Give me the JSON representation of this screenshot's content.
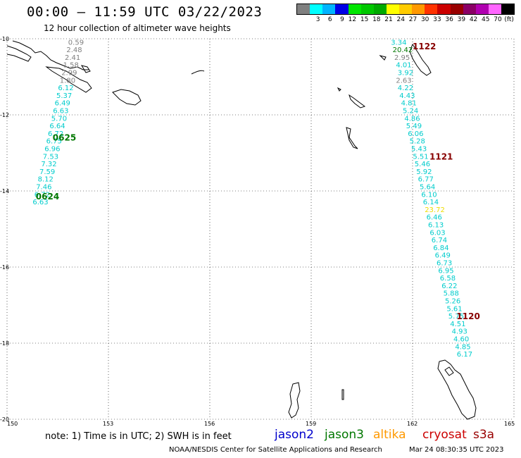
{
  "header": {
    "title": "00:00 — 11:59 UTC 03/22/2023",
    "subtitle": "12 hour collection of altimeter wave heights"
  },
  "color_scale": {
    "unit_label": "(ft)",
    "bins": [
      {
        "label": "",
        "color": "#808080"
      },
      {
        "label": "3",
        "color": "#00ffff"
      },
      {
        "label": "6",
        "color": "#00b4ff"
      },
      {
        "label": "9",
        "color": "#0000e6"
      },
      {
        "label": "12",
        "color": "#00e600"
      },
      {
        "label": "15",
        "color": "#00c800"
      },
      {
        "label": "18",
        "color": "#00aa00"
      },
      {
        "label": "21",
        "color": "#ffff00"
      },
      {
        "label": "24",
        "color": "#ffcc00"
      },
      {
        "label": "27",
        "color": "#ff9900"
      },
      {
        "label": "30",
        "color": "#ff3300"
      },
      {
        "label": "33",
        "color": "#cc0000"
      },
      {
        "label": "36",
        "color": "#990000"
      },
      {
        "label": "39",
        "color": "#8b0066"
      },
      {
        "label": "42",
        "color": "#b000b0"
      },
      {
        "label": "45",
        "color": "#ff66ff"
      },
      {
        "label": "70",
        "color": "#000000"
      }
    ]
  },
  "map": {
    "lon_range": [
      150,
      165
    ],
    "lat_range": [
      -20,
      -10
    ],
    "lon_ticks": [
      "150",
      "153",
      "156",
      "159",
      "162",
      "165"
    ],
    "lat_ticks": [
      "-10",
      "-12",
      "-14",
      "-16",
      "-18",
      "-20"
    ],
    "track_labels": [
      {
        "text": "0625",
        "lon": 151.35,
        "lat": -12.6,
        "color": "#007700"
      },
      {
        "text": "0624",
        "lon": 150.85,
        "lat": -14.15,
        "color": "#007700"
      },
      {
        "text": "1122",
        "lon": 162.0,
        "lat": -10.2,
        "color": "#880000"
      },
      {
        "text": "1121",
        "lon": 162.5,
        "lat": -13.1,
        "color": "#880000"
      },
      {
        "text": "1120",
        "lon": 163.3,
        "lat": -17.3,
        "color": "#880000"
      }
    ],
    "tracks": [
      {
        "name": "west",
        "points": [
          {
            "lon": 151.85,
            "lat": -10.08,
            "v": "0.59",
            "color": "#808080"
          },
          {
            "lon": 151.8,
            "lat": -10.28,
            "v": "2.48",
            "color": "#808080"
          },
          {
            "lon": 151.75,
            "lat": -10.48,
            "v": "2.41",
            "color": "#808080"
          },
          {
            "lon": 151.7,
            "lat": -10.68,
            "v": "1.58",
            "color": "#808080"
          },
          {
            "lon": 151.65,
            "lat": -10.88,
            "v": "2.99",
            "color": "#808080"
          },
          {
            "lon": 151.6,
            "lat": -11.08,
            "v": "1.80",
            "color": "#808080"
          },
          {
            "lon": 151.55,
            "lat": -11.28,
            "v": "6.12",
            "color": "#00cccc"
          },
          {
            "lon": 151.5,
            "lat": -11.48,
            "v": "5.37",
            "color": "#00cccc"
          },
          {
            "lon": 151.45,
            "lat": -11.68,
            "v": "6.49",
            "color": "#00cccc"
          },
          {
            "lon": 151.4,
            "lat": -11.88,
            "v": "6.63",
            "color": "#00cccc"
          },
          {
            "lon": 151.35,
            "lat": -12.08,
            "v": "5.70",
            "color": "#00cccc"
          },
          {
            "lon": 151.3,
            "lat": -12.28,
            "v": "6.64",
            "color": "#00cccc"
          },
          {
            "lon": 151.25,
            "lat": -12.48,
            "v": "6.72",
            "color": "#00cccc"
          },
          {
            "lon": 151.2,
            "lat": -12.68,
            "v": "6.75",
            "color": "#00cccc"
          },
          {
            "lon": 151.15,
            "lat": -12.88,
            "v": "6.96",
            "color": "#00cccc"
          },
          {
            "lon": 151.1,
            "lat": -13.08,
            "v": "7.53",
            "color": "#00cccc"
          },
          {
            "lon": 151.05,
            "lat": -13.28,
            "v": "7.32",
            "color": "#00cccc"
          },
          {
            "lon": 151.0,
            "lat": -13.48,
            "v": "7.59",
            "color": "#00cccc"
          },
          {
            "lon": 150.95,
            "lat": -13.68,
            "v": "8.12",
            "color": "#00cccc"
          },
          {
            "lon": 150.9,
            "lat": -13.88,
            "v": "7.46",
            "color": "#00cccc"
          },
          {
            "lon": 150.85,
            "lat": -14.08,
            "v": "6.72",
            "color": "#00cccc"
          },
          {
            "lon": 150.8,
            "lat": -14.28,
            "v": "6.63",
            "color": "#00cccc"
          }
        ]
      },
      {
        "name": "east",
        "points": [
          {
            "lon": 161.4,
            "lat": -10.08,
            "v": "3.34",
            "color": "#00cccc"
          },
          {
            "lon": 161.45,
            "lat": -10.28,
            "v": "20.42",
            "color": "#007700"
          },
          {
            "lon": 161.5,
            "lat": -10.48,
            "v": "2.95",
            "color": "#808080"
          },
          {
            "lon": 161.55,
            "lat": -10.68,
            "v": "4.01",
            "color": "#00cccc"
          },
          {
            "lon": 161.6,
            "lat": -10.88,
            "v": "3.92",
            "color": "#00cccc"
          },
          {
            "lon": 161.55,
            "lat": -11.08,
            "v": "2.63",
            "color": "#808080"
          },
          {
            "lon": 161.6,
            "lat": -11.28,
            "v": "4.22",
            "color": "#00cccc"
          },
          {
            "lon": 161.65,
            "lat": -11.48,
            "v": "4.43",
            "color": "#00cccc"
          },
          {
            "lon": 161.7,
            "lat": -11.68,
            "v": "4.81",
            "color": "#00cccc"
          },
          {
            "lon": 161.75,
            "lat": -11.88,
            "v": "5.24",
            "color": "#00cccc"
          },
          {
            "lon": 161.8,
            "lat": -12.08,
            "v": "4.86",
            "color": "#00cccc"
          },
          {
            "lon": 161.85,
            "lat": -12.28,
            "v": "5.49",
            "color": "#00cccc"
          },
          {
            "lon": 161.9,
            "lat": -12.48,
            "v": "6.06",
            "color": "#00cccc"
          },
          {
            "lon": 161.95,
            "lat": -12.68,
            "v": "5.28",
            "color": "#00cccc"
          },
          {
            "lon": 162.0,
            "lat": -12.88,
            "v": "5.43",
            "color": "#00cccc"
          },
          {
            "lon": 162.05,
            "lat": -13.08,
            "v": "5.51",
            "color": "#00cccc"
          },
          {
            "lon": 162.1,
            "lat": -13.28,
            "v": "5.46",
            "color": "#00cccc"
          },
          {
            "lon": 162.15,
            "lat": -13.48,
            "v": "5.92",
            "color": "#00cccc"
          },
          {
            "lon": 162.2,
            "lat": -13.68,
            "v": "6.77",
            "color": "#00cccc"
          },
          {
            "lon": 162.25,
            "lat": -13.88,
            "v": "5.64",
            "color": "#00cccc"
          },
          {
            "lon": 162.3,
            "lat": -14.08,
            "v": "6.10",
            "color": "#00cccc"
          },
          {
            "lon": 162.35,
            "lat": -14.28,
            "v": "6.14",
            "color": "#00cccc"
          },
          {
            "lon": 162.4,
            "lat": -14.48,
            "v": "23.72",
            "color": "#eedd00"
          },
          {
            "lon": 162.45,
            "lat": -14.68,
            "v": "6.46",
            "color": "#00cccc"
          },
          {
            "lon": 162.5,
            "lat": -14.88,
            "v": "6.13",
            "color": "#00cccc"
          },
          {
            "lon": 162.55,
            "lat": -15.08,
            "v": "6.03",
            "color": "#00cccc"
          },
          {
            "lon": 162.6,
            "lat": -15.28,
            "v": "6.74",
            "color": "#00cccc"
          },
          {
            "lon": 162.65,
            "lat": -15.48,
            "v": "6.84",
            "color": "#00cccc"
          },
          {
            "lon": 162.7,
            "lat": -15.68,
            "v": "6.49",
            "color": "#00cccc"
          },
          {
            "lon": 162.75,
            "lat": -15.88,
            "v": "6.73",
            "color": "#00cccc"
          },
          {
            "lon": 162.8,
            "lat": -16.08,
            "v": "6.95",
            "color": "#00cccc"
          },
          {
            "lon": 162.85,
            "lat": -16.28,
            "v": "6.58",
            "color": "#00cccc"
          },
          {
            "lon": 162.9,
            "lat": -16.48,
            "v": "6.22",
            "color": "#00cccc"
          },
          {
            "lon": 162.95,
            "lat": -16.68,
            "v": "5.88",
            "color": "#00cccc"
          },
          {
            "lon": 163.0,
            "lat": -16.88,
            "v": "5.26",
            "color": "#00cccc"
          },
          {
            "lon": 163.05,
            "lat": -17.08,
            "v": "5.61",
            "color": "#00cccc"
          },
          {
            "lon": 163.1,
            "lat": -17.28,
            "v": "5.75",
            "color": "#00cccc"
          },
          {
            "lon": 163.15,
            "lat": -17.48,
            "v": "4.51",
            "color": "#00cccc"
          },
          {
            "lon": 163.2,
            "lat": -17.68,
            "v": "4.93",
            "color": "#00cccc"
          },
          {
            "lon": 163.25,
            "lat": -17.88,
            "v": "4.60",
            "color": "#00cccc"
          },
          {
            "lon": 163.3,
            "lat": -18.08,
            "v": "4.85",
            "color": "#00cccc"
          },
          {
            "lon": 163.35,
            "lat": -18.28,
            "v": "6.17",
            "color": "#00cccc"
          }
        ]
      }
    ]
  },
  "footer": {
    "note": "note: 1) Time is in UTC; 2) SWH is in feet",
    "satellites": [
      {
        "name": "jason2",
        "color": "#0000cc"
      },
      {
        "name": "jason3",
        "color": "#007700"
      },
      {
        "name": "altika",
        "color": "#ff9900"
      },
      {
        "name": "cryosat",
        "color": "#cc0000"
      },
      {
        "name": "s3a",
        "color": "#990000"
      }
    ],
    "credit": "NOAA/NESDIS Center for Satellite Applications and Research",
    "generated": "Mar 24 08:30:35 UTC 2023"
  }
}
